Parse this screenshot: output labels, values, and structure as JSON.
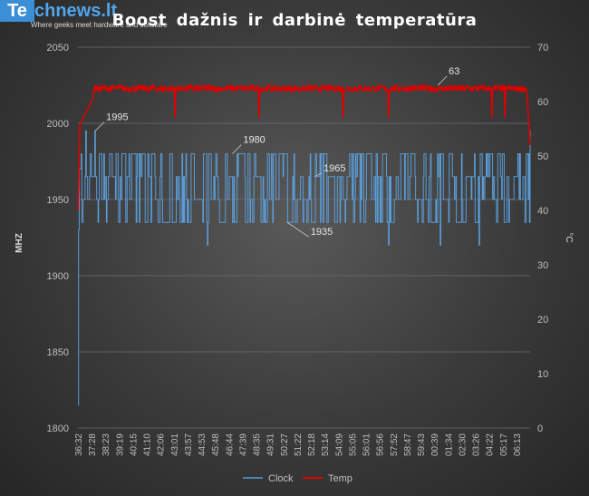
{
  "brand": {
    "logo_highlight": "Te",
    "logo_rest": "chnews.lt",
    "tagline": "Where geeks meet hardware and software"
  },
  "chart_data": {
    "type": "line",
    "title": "Boost dažnis ir darbinė temperatūra",
    "ylabel": "MHZ",
    "y2label": "°C",
    "ylim": [
      1800,
      2050
    ],
    "y2lim": [
      0,
      70
    ],
    "yticks": [
      1800,
      1850,
      1900,
      1950,
      2000,
      2050
    ],
    "y2ticks": [
      0,
      10,
      20,
      30,
      40,
      50,
      60,
      70
    ],
    "x_ticks": [
      "36:32",
      "37:28",
      "38:23",
      "39:19",
      "40:15",
      "41:10",
      "42:06",
      "43:01",
      "43:57",
      "44:53",
      "45:48",
      "46:44",
      "47:39",
      "48:35",
      "49:31",
      "50:27",
      "51:22",
      "52:18",
      "53:14",
      "54:09",
      "55:05",
      "56:01",
      "56:56",
      "57:52",
      "58:47",
      "59:43",
      "00:39",
      "01:34",
      "02:30",
      "03:26",
      "04:22",
      "05:17",
      "06:13"
    ],
    "grid": true,
    "legend_position": "bottom",
    "series": [
      {
        "name": "Clock",
        "axis": "left",
        "color": "#5b9bd5",
        "baseline": [
          1815,
          1995,
          1965,
          1980,
          1935,
          1950
        ],
        "typical_range": [
          1935,
          1980
        ]
      },
      {
        "name": "Temp",
        "axis": "right",
        "color": "#e00000",
        "baseline": [
          40,
          55,
          60,
          62,
          62.5,
          63,
          62.5,
          55
        ],
        "typical_range": [
          60,
          63
        ]
      }
    ],
    "annotations": [
      {
        "label": "1995",
        "series": "Clock",
        "x": "37:28",
        "y": 1995
      },
      {
        "label": "1980",
        "series": "Clock",
        "x": "46:44",
        "y": 1980
      },
      {
        "label": "1965",
        "series": "Clock",
        "x": "52:18",
        "y": 1965
      },
      {
        "label": "1935",
        "series": "Clock",
        "x": "50:27",
        "y": 1935
      },
      {
        "label": "63",
        "series": "Temp",
        "x": "00:39",
        "y": 63
      }
    ]
  }
}
